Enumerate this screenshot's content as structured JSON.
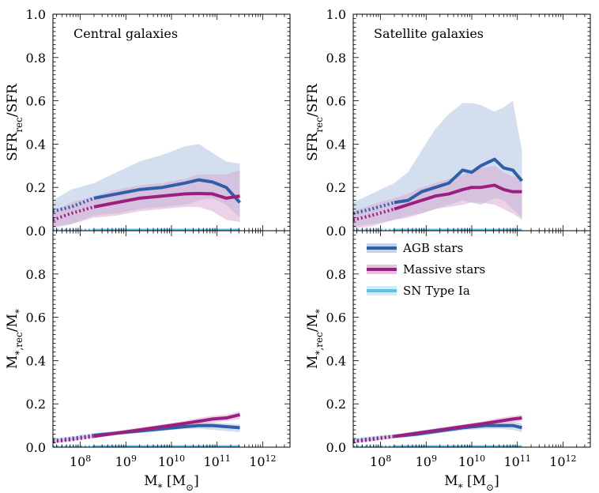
{
  "colors": {
    "agb": "#2e5fa8",
    "massive": "#9c1f7f",
    "snia": "#5bc1e8",
    "agb_band": "#aec2e0",
    "massive_band": "#d8a6cf",
    "snia_band": "#bfe6f5"
  },
  "legend": [
    "AGB stars",
    "Massive stars",
    "SN Type Ia"
  ],
  "chart_data": [
    {
      "type": "line",
      "panel": "top-left",
      "title": "Central galaxies",
      "ylabel": "SFR_rec/SFR",
      "xlabel": "",
      "xlim": [
        7.4,
        12.6
      ],
      "ylim": [
        0,
        1.0
      ],
      "yticks": [
        "0.0",
        "0.2",
        "0.4",
        "0.6",
        "0.8",
        "1.0"
      ],
      "series": [
        {
          "name": "AGB stars",
          "x": [
            7.4,
            7.8,
            8.3,
            8.8,
            9.3,
            9.8,
            10.3,
            10.6,
            10.9,
            11.2,
            11.5
          ],
          "y": [
            0.09,
            0.11,
            0.15,
            0.17,
            0.19,
            0.2,
            0.22,
            0.235,
            0.225,
            0.2,
            0.13
          ],
          "lo": [
            0.02,
            0.03,
            0.07,
            0.08,
            0.1,
            0.11,
            0.12,
            0.14,
            0.15,
            0.12,
            0.06
          ],
          "hi": [
            0.14,
            0.19,
            0.22,
            0.27,
            0.32,
            0.35,
            0.39,
            0.4,
            0.36,
            0.32,
            0.31
          ]
        },
        {
          "name": "Massive stars",
          "x": [
            7.4,
            7.8,
            8.3,
            8.8,
            9.3,
            9.8,
            10.3,
            10.6,
            10.9,
            11.2,
            11.5
          ],
          "y": [
            0.05,
            0.08,
            0.11,
            0.13,
            0.15,
            0.16,
            0.17,
            0.172,
            0.17,
            0.15,
            0.16
          ],
          "lo": [
            0.01,
            0.03,
            0.06,
            0.07,
            0.09,
            0.1,
            0.11,
            0.11,
            0.09,
            0.05,
            0.04
          ],
          "hi": [
            0.09,
            0.13,
            0.16,
            0.19,
            0.21,
            0.22,
            0.24,
            0.26,
            0.26,
            0.26,
            0.28
          ]
        },
        {
          "name": "SN Type Ia",
          "x": [
            7.4,
            8.3,
            11.5
          ],
          "y": [
            0.003,
            0.003,
            0.003
          ],
          "lo": [
            0,
            0,
            0
          ],
          "hi": [
            0.01,
            0.01,
            0.01
          ]
        }
      ]
    },
    {
      "type": "line",
      "panel": "top-right",
      "title": "Satellite galaxies",
      "ylabel": "SFR_rec/SFR",
      "xlabel": "",
      "xlim": [
        7.4,
        12.6
      ],
      "ylim": [
        0,
        1.0
      ],
      "yticks": [
        "0.0",
        "0.2",
        "0.4",
        "0.6",
        "0.8",
        "1.0"
      ],
      "series": [
        {
          "name": "AGB stars",
          "x": [
            7.4,
            7.8,
            8.3,
            8.6,
            8.9,
            9.2,
            9.5,
            9.8,
            10.0,
            10.2,
            10.5,
            10.7,
            10.9,
            11.1
          ],
          "y": [
            0.08,
            0.1,
            0.13,
            0.14,
            0.18,
            0.2,
            0.22,
            0.28,
            0.27,
            0.3,
            0.33,
            0.29,
            0.28,
            0.23
          ],
          "lo": [
            0.02,
            0.03,
            0.05,
            0.07,
            0.08,
            0.1,
            0.12,
            0.14,
            0.13,
            0.12,
            0.15,
            0.14,
            0.1,
            0.06
          ],
          "hi": [
            0.13,
            0.17,
            0.22,
            0.27,
            0.37,
            0.47,
            0.54,
            0.59,
            0.59,
            0.58,
            0.55,
            0.57,
            0.6,
            0.37
          ]
        },
        {
          "name": "Massive stars",
          "x": [
            7.4,
            7.8,
            8.3,
            8.6,
            8.9,
            9.2,
            9.5,
            9.8,
            10.0,
            10.2,
            10.5,
            10.7,
            10.9,
            11.1
          ],
          "y": [
            0.05,
            0.07,
            0.1,
            0.12,
            0.14,
            0.16,
            0.17,
            0.19,
            0.2,
            0.2,
            0.21,
            0.19,
            0.18,
            0.18
          ],
          "lo": [
            0.01,
            0.02,
            0.05,
            0.06,
            0.08,
            0.1,
            0.11,
            0.12,
            0.13,
            0.13,
            0.12,
            0.1,
            0.08,
            0.05
          ],
          "hi": [
            0.09,
            0.12,
            0.15,
            0.17,
            0.2,
            0.22,
            0.24,
            0.26,
            0.28,
            0.29,
            0.3,
            0.27,
            0.25,
            0.25
          ]
        },
        {
          "name": "SN Type Ia",
          "x": [
            7.4,
            8.3,
            11.1
          ],
          "y": [
            0.003,
            0.003,
            0.003
          ],
          "lo": [
            0,
            0,
            0
          ],
          "hi": [
            0.01,
            0.01,
            0.01
          ]
        }
      ]
    },
    {
      "type": "line",
      "panel": "bottom-left",
      "title": "",
      "ylabel": "M_*,rec/M_*",
      "xlabel": "M_* [M_sun]",
      "xlim": [
        7.4,
        12.6
      ],
      "ylim": [
        0,
        1.0
      ],
      "yticks": [
        "0.0",
        "0.2",
        "0.4",
        "0.6",
        "0.8",
        ""
      ],
      "xticks": [
        {
          "exp": "8",
          "v": 8
        },
        {
          "exp": "9",
          "v": 9
        },
        {
          "exp": "10",
          "v": 10
        },
        {
          "exp": "11",
          "v": 11
        },
        {
          "exp": "12",
          "v": 12
        }
      ],
      "series": [
        {
          "name": "AGB stars",
          "x": [
            7.4,
            7.8,
            8.3,
            8.8,
            9.3,
            9.8,
            10.3,
            10.6,
            10.9,
            11.2,
            11.5
          ],
          "y": [
            0.03,
            0.04,
            0.055,
            0.065,
            0.075,
            0.085,
            0.095,
            0.1,
            0.1,
            0.095,
            0.09
          ],
          "lo": [
            0.02,
            0.03,
            0.045,
            0.055,
            0.065,
            0.075,
            0.085,
            0.085,
            0.08,
            0.075,
            0.07
          ],
          "hi": [
            0.04,
            0.05,
            0.065,
            0.075,
            0.085,
            0.095,
            0.105,
            0.115,
            0.115,
            0.11,
            0.105
          ]
        },
        {
          "name": "Massive stars",
          "x": [
            7.4,
            7.8,
            8.3,
            8.8,
            9.3,
            9.8,
            10.3,
            10.6,
            10.9,
            11.2,
            11.5
          ],
          "y": [
            0.025,
            0.035,
            0.05,
            0.065,
            0.08,
            0.095,
            0.11,
            0.12,
            0.13,
            0.135,
            0.15
          ],
          "lo": [
            0.018,
            0.027,
            0.042,
            0.055,
            0.07,
            0.085,
            0.098,
            0.108,
            0.115,
            0.12,
            0.13
          ],
          "hi": [
            0.032,
            0.043,
            0.058,
            0.075,
            0.09,
            0.105,
            0.122,
            0.135,
            0.145,
            0.15,
            0.165
          ]
        },
        {
          "name": "SN Type Ia",
          "x": [
            7.4,
            8.3,
            11.5
          ],
          "y": [
            0.003,
            0.003,
            0.003
          ],
          "lo": [
            0,
            0,
            0
          ],
          "hi": [
            0.008,
            0.008,
            0.008
          ]
        }
      ]
    },
    {
      "type": "line",
      "panel": "bottom-right",
      "title": "",
      "ylabel": "M_*,rec/M_*",
      "xlabel": "M_* [M_sun]",
      "xlim": [
        7.4,
        12.6
      ],
      "ylim": [
        0,
        1.0
      ],
      "yticks": [
        "0.0",
        "0.2",
        "0.4",
        "0.6",
        "0.8",
        ""
      ],
      "xticks": [
        {
          "exp": "8",
          "v": 8
        },
        {
          "exp": "9",
          "v": 9
        },
        {
          "exp": "10",
          "v": 10
        },
        {
          "exp": "11",
          "v": 11
        },
        {
          "exp": "12",
          "v": 12
        }
      ],
      "series": [
        {
          "name": "AGB stars",
          "x": [
            7.4,
            7.8,
            8.3,
            8.8,
            9.3,
            9.8,
            10.3,
            10.6,
            10.9,
            11.1
          ],
          "y": [
            0.03,
            0.04,
            0.05,
            0.06,
            0.075,
            0.09,
            0.1,
            0.1,
            0.1,
            0.09
          ],
          "lo": [
            0.02,
            0.03,
            0.04,
            0.05,
            0.065,
            0.078,
            0.085,
            0.085,
            0.08,
            0.07
          ],
          "hi": [
            0.04,
            0.05,
            0.06,
            0.07,
            0.085,
            0.102,
            0.115,
            0.115,
            0.118,
            0.11
          ]
        },
        {
          "name": "Massive stars",
          "x": [
            7.4,
            7.8,
            8.3,
            8.8,
            9.3,
            9.8,
            10.3,
            10.6,
            10.9,
            11.1
          ],
          "y": [
            0.025,
            0.035,
            0.05,
            0.065,
            0.08,
            0.095,
            0.11,
            0.12,
            0.13,
            0.135
          ],
          "lo": [
            0.018,
            0.027,
            0.042,
            0.055,
            0.07,
            0.085,
            0.098,
            0.108,
            0.115,
            0.12
          ],
          "hi": [
            0.032,
            0.043,
            0.058,
            0.075,
            0.09,
            0.105,
            0.122,
            0.135,
            0.145,
            0.15
          ]
        },
        {
          "name": "SN Type Ia",
          "x": [
            7.4,
            8.3,
            11.1
          ],
          "y": [
            0.003,
            0.003,
            0.003
          ],
          "lo": [
            0,
            0,
            0
          ],
          "hi": [
            0.008,
            0.008,
            0.008
          ]
        }
      ]
    }
  ]
}
